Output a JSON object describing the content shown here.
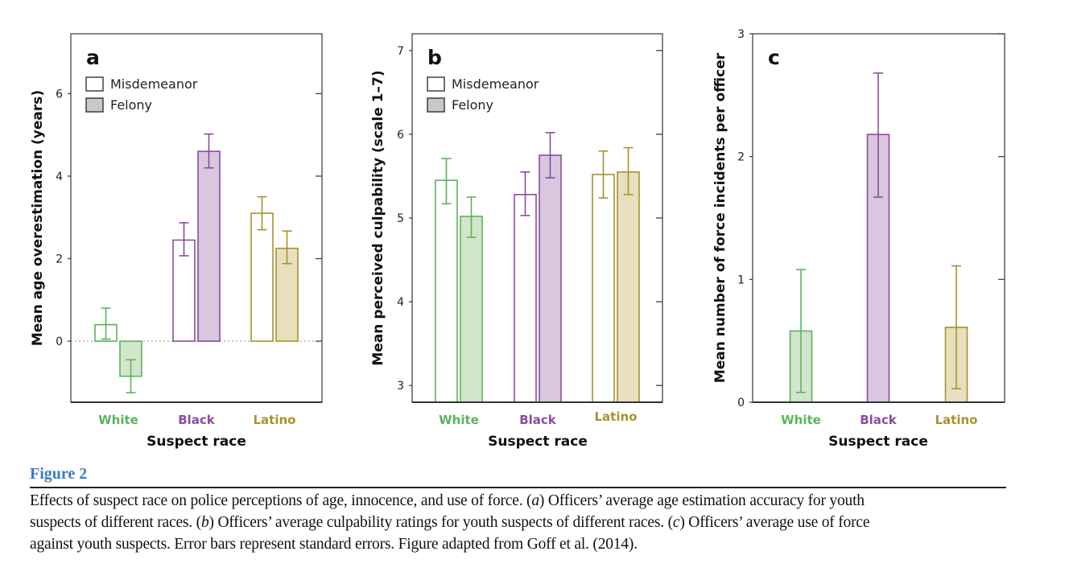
{
  "figure": {
    "label": "Figure 2",
    "caption_lines": [
      [
        {
          "text": "Effects of suspect race on police perceptions of age, innocence, and use of force. ("
        },
        {
          "text": "a",
          "italic": true
        },
        {
          "text": ") Officers’ average age estimation accuracy for youth"
        }
      ],
      [
        {
          "text": "suspects of different races. ("
        },
        {
          "text": "b",
          "italic": true
        },
        {
          "text": ") Officers’ average culpability ratings for youth suspects of different races. ("
        },
        {
          "text": "c",
          "italic": true
        },
        {
          "text": ") Officers’ average use of force"
        }
      ],
      [
        {
          "text": "against youth suspects. Error bars represent standard errors. Figure adapted from Goff et al. (2014)."
        }
      ]
    ]
  },
  "colors": {
    "White": {
      "stroke": "#5cb45c",
      "fill": "#d2e6cc"
    },
    "Black": {
      "stroke": "#8c4c9e",
      "fill": "#d8c7df"
    },
    "Latino": {
      "stroke": "#a8922f",
      "fill": "#e8dfbf"
    },
    "legend_fill": "#c8c8c8"
  },
  "chart_data": [
    {
      "type": "bar",
      "panel": "a",
      "ylabel": "Mean age overestimation (years)",
      "xlabel": "Suspect race",
      "categories": [
        "White",
        "Black",
        "Latino"
      ],
      "ylim": [
        -1.48,
        7.45
      ],
      "yticks": [
        0,
        2,
        4,
        6
      ],
      "zero_line": "dotted",
      "legend": {
        "position": "top-left",
        "entries": [
          "Misdemeanor",
          "Felony"
        ]
      },
      "series": [
        {
          "name": "Misdemeanor",
          "values": [
            0.4,
            2.45,
            3.1
          ],
          "err_low": [
            0.05,
            2.07,
            2.7
          ],
          "err_high": [
            0.8,
            2.87,
            3.5
          ]
        },
        {
          "name": "Felony",
          "values": [
            -0.85,
            4.6,
            2.25
          ],
          "err_low": [
            -1.25,
            4.2,
            1.88
          ],
          "err_high": [
            -0.45,
            5.02,
            2.67
          ]
        }
      ]
    },
    {
      "type": "bar",
      "panel": "b",
      "ylabel": "Mean perceived culpability (scale 1–7)",
      "xlabel": "Suspect race",
      "categories": [
        "White",
        "Black",
        "Latino"
      ],
      "ylim": [
        2.8,
        7.2
      ],
      "yticks": [
        3,
        4,
        5,
        6,
        7
      ],
      "legend": {
        "position": "top-left",
        "entries": [
          "Misdemeanor",
          "Felony"
        ]
      },
      "series": [
        {
          "name": "Misdemeanor",
          "values": [
            5.45,
            5.28,
            5.52
          ],
          "err_low": [
            5.17,
            5.03,
            5.24
          ],
          "err_high": [
            5.71,
            5.55,
            5.8
          ]
        },
        {
          "name": "Felony",
          "values": [
            5.02,
            5.75,
            5.55
          ],
          "err_low": [
            4.77,
            5.48,
            5.28
          ],
          "err_high": [
            5.25,
            6.02,
            5.84
          ]
        }
      ]
    },
    {
      "type": "bar",
      "panel": "c",
      "ylabel": "Mean number of force incidents per officer",
      "xlabel": "Suspect race",
      "categories": [
        "White",
        "Black",
        "Latino"
      ],
      "ylim": [
        0,
        3
      ],
      "yticks": [
        0,
        1,
        2,
        3
      ],
      "series": [
        {
          "values": [
            0.58,
            2.18,
            0.61
          ],
          "err_low": [
            0.08,
            1.67,
            0.11
          ],
          "err_high": [
            1.08,
            2.68,
            1.11
          ]
        }
      ]
    }
  ]
}
